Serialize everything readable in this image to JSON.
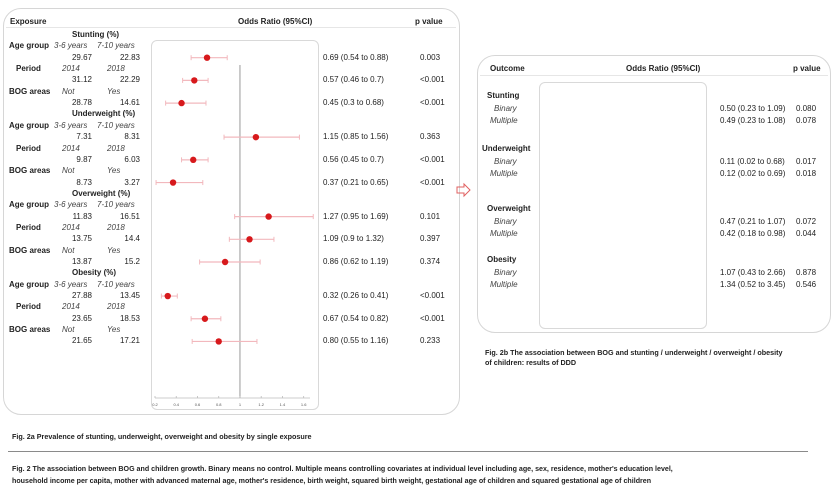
{
  "fig2a": {
    "headers": {
      "exposure": "Exposure",
      "or": "Odds Ratio (95%CI)",
      "p": "p value"
    },
    "caption": "Fig. 2a  Prevalence of stunting, underweight, overweight and obesity by single exposure",
    "groups": [
      {
        "title": "Stunting (%)",
        "rows": [
          {
            "label": "Age group",
            "cat1": "3-6 years",
            "cat2": "7-10 years",
            "v1": "29.67",
            "v2": "22.83",
            "or_text": "0.69 (0.54 to 0.88)",
            "p": "0.003"
          },
          {
            "label": "Period",
            "cat1": "2014",
            "cat2": "2018",
            "v1": "31.12",
            "v2": "22.29",
            "or_text": "0.57 (0.46 to 0.7)",
            "p": "<0.001"
          },
          {
            "label": "BOG areas",
            "cat1": "Not",
            "cat2": "Yes",
            "v1": "28.78",
            "v2": "14.61",
            "or_text": "0.45 (0.3 to 0.68)",
            "p": "<0.001"
          }
        ]
      },
      {
        "title": "Underweight (%)",
        "rows": [
          {
            "label": "Age group",
            "cat1": "3-6 years",
            "cat2": "7-10 years",
            "v1": "7.31",
            "v2": "8.31",
            "or_text": "1.15 (0.85 to 1.56)",
            "p": "0.363"
          },
          {
            "label": "Period",
            "cat1": "2014",
            "cat2": "2018",
            "v1": "9.87",
            "v2": "6.03",
            "or_text": "0.56 (0.45 to 0.7)",
            "p": "<0.001"
          },
          {
            "label": "BOG areas",
            "cat1": "Not",
            "cat2": "Yes",
            "v1": "8.73",
            "v2": "3.27",
            "or_text": "0.37 (0.21 to 0.65)",
            "p": "<0.001"
          }
        ]
      },
      {
        "title": "Overweight (%)",
        "rows": [
          {
            "label": "Age group",
            "cat1": "3-6 years",
            "cat2": "7-10 years",
            "v1": "11.83",
            "v2": "16.51",
            "or_text": "1.27 (0.95 to 1.69)",
            "p": "0.101"
          },
          {
            "label": "Period",
            "cat1": "2014",
            "cat2": "2018",
            "v1": "13.75",
            "v2": "14.4",
            "or_text": "1.09 (0.9 to 1.32)",
            "p": "0.397"
          },
          {
            "label": "BOG areas",
            "cat1": "Not",
            "cat2": "Yes",
            "v1": "13.87",
            "v2": "15.2",
            "or_text": "0.86 (0.62 to 1.19)",
            "p": "0.374"
          }
        ]
      },
      {
        "title": "Obesity (%)",
        "rows": [
          {
            "label": "Age group",
            "cat1": "3-6 years",
            "cat2": "7-10 years",
            "v1": "27.88",
            "v2": "13.45",
            "or_text": "0.32 (0.26 to 0.41)",
            "p": "<0.001"
          },
          {
            "label": "Period",
            "cat1": "2014",
            "cat2": "2018",
            "v1": "23.65",
            "v2": "18.53",
            "or_text": "0.67 (0.54 to 0.82)",
            "p": "<0.001"
          },
          {
            "label": "BOG areas",
            "cat1": "Not",
            "cat2": "Yes",
            "v1": "21.65",
            "v2": "17.21",
            "or_text": "0.80 (0.55 to 1.16)",
            "p": "0.233"
          }
        ]
      }
    ]
  },
  "fig2b": {
    "headers": {
      "outcome": "Outcome",
      "or": "Odds Ratio (95%CI)",
      "p": "p value"
    },
    "caption_line1": "Fig. 2b  The association between BOG and stunting / underweight / overweight / obesity",
    "caption_line2": "of children: results of DDD",
    "groups": [
      {
        "title": "Stunting",
        "rows": [
          {
            "label": "Binary",
            "or_text": "0.50 (0.23 to 1.09)",
            "p": "0.080"
          },
          {
            "label": "Multiple",
            "or_text": "0.49 (0.23 to 1.08)",
            "p": "0.078"
          }
        ]
      },
      {
        "title": "Underweight",
        "rows": [
          {
            "label": "Binary",
            "or_text": "0.11 (0.02 to 0.68)",
            "p": "0.017"
          },
          {
            "label": "Multiple",
            "or_text": "0.12 (0.02 to 0.69)",
            "p": "0.018"
          }
        ]
      },
      {
        "title": "Overweight",
        "rows": [
          {
            "label": "Binary",
            "or_text": "0.47 (0.21 to 1.07)",
            "p": "0.072"
          },
          {
            "label": "Multiple",
            "or_text": "0.42 (0.18 to 0.98)",
            "p": "0.044"
          }
        ]
      },
      {
        "title": "Obesity",
        "rows": [
          {
            "label": "Binary",
            "or_text": "1.07 (0.43 to 2.66)",
            "p": "0.878"
          },
          {
            "label": "Multiple",
            "or_text": "1.34 (0.52 to 3.45)",
            "p": "0.546"
          }
        ]
      }
    ]
  },
  "figure_caption": {
    "line1": "Fig. 2  The association between BOG and children growth. Binary means no control. Multiple means controlling covariates at individual level including age, sex, residence, mother's education level,",
    "line2": "household income per capita, mother with advanced maternal age, mother's residence, birth weight, squared birth weight,  gestational age of children and squared gestational age of children"
  },
  "colors": {
    "point": "#d7191c",
    "ci": "#f2b8bd",
    "refline": "#9a9a9a",
    "arrow": "#e06060"
  },
  "chart_data": [
    {
      "type": "scatter",
      "subtype": "forest",
      "title": "Fig. 2a  Prevalence of stunting, underweight, overweight and obesity by single exposure",
      "xlabel": "Odds Ratio (95%CI)",
      "xlim": [
        0.2,
        1.6
      ],
      "xticks": [
        "0.2",
        "0.4",
        "0.6",
        "0.8",
        "1",
        "1.2",
        "1.4",
        "1.6"
      ],
      "reference": 1,
      "grid": false,
      "points": [
        {
          "outcome": "Stunting",
          "exposure": "Age group",
          "or": 0.69,
          "lo": 0.54,
          "hi": 0.88
        },
        {
          "outcome": "Stunting",
          "exposure": "Period",
          "or": 0.57,
          "lo": 0.46,
          "hi": 0.7
        },
        {
          "outcome": "Stunting",
          "exposure": "BOG areas",
          "or": 0.45,
          "lo": 0.3,
          "hi": 0.68
        },
        {
          "outcome": "Underweight",
          "exposure": "Age group",
          "or": 1.15,
          "lo": 0.85,
          "hi": 1.56
        },
        {
          "outcome": "Underweight",
          "exposure": "Period",
          "or": 0.56,
          "lo": 0.45,
          "hi": 0.7
        },
        {
          "outcome": "Underweight",
          "exposure": "BOG areas",
          "or": 0.37,
          "lo": 0.21,
          "hi": 0.65
        },
        {
          "outcome": "Overweight",
          "exposure": "Age group",
          "or": 1.27,
          "lo": 0.95,
          "hi": 1.69
        },
        {
          "outcome": "Overweight",
          "exposure": "Period",
          "or": 1.09,
          "lo": 0.9,
          "hi": 1.32
        },
        {
          "outcome": "Overweight",
          "exposure": "BOG areas",
          "or": 0.86,
          "lo": 0.62,
          "hi": 1.19
        },
        {
          "outcome": "Obesity",
          "exposure": "Age group",
          "or": 0.32,
          "lo": 0.26,
          "hi": 0.41
        },
        {
          "outcome": "Obesity",
          "exposure": "Period",
          "or": 0.67,
          "lo": 0.54,
          "hi": 0.82
        },
        {
          "outcome": "Obesity",
          "exposure": "BOG areas",
          "or": 0.8,
          "lo": 0.55,
          "hi": 1.16
        }
      ]
    },
    {
      "type": "scatter",
      "subtype": "forest",
      "title": "Fig. 2b  The association between BOG and stunting / underweight / overweight / obesity of children: results of DDD",
      "xlabel": "Odds Ratio (95%CI)",
      "xlim": [
        0.02,
        3.45
      ],
      "xticks": [
        "0.02",
        "0.62",
        "1.22",
        "1.82",
        "2.42",
        "3.02"
      ],
      "reference": 1,
      "grid": false,
      "points": [
        {
          "outcome": "Stunting",
          "model": "Binary",
          "or": 0.5,
          "lo": 0.23,
          "hi": 1.09
        },
        {
          "outcome": "Stunting",
          "model": "Multiple",
          "or": 0.49,
          "lo": 0.23,
          "hi": 1.08
        },
        {
          "outcome": "Underweight",
          "model": "Binary",
          "or": 0.11,
          "lo": 0.02,
          "hi": 0.68
        },
        {
          "outcome": "Underweight",
          "model": "Multiple",
          "or": 0.12,
          "lo": 0.02,
          "hi": 0.69
        },
        {
          "outcome": "Overweight",
          "model": "Binary",
          "or": 0.47,
          "lo": 0.21,
          "hi": 1.07
        },
        {
          "outcome": "Overweight",
          "model": "Multiple",
          "or": 0.42,
          "lo": 0.18,
          "hi": 0.98
        },
        {
          "outcome": "Obesity",
          "model": "Binary",
          "or": 1.07,
          "lo": 0.43,
          "hi": 2.66
        },
        {
          "outcome": "Obesity",
          "model": "Multiple",
          "or": 1.34,
          "lo": 0.52,
          "hi": 3.45
        }
      ]
    }
  ]
}
